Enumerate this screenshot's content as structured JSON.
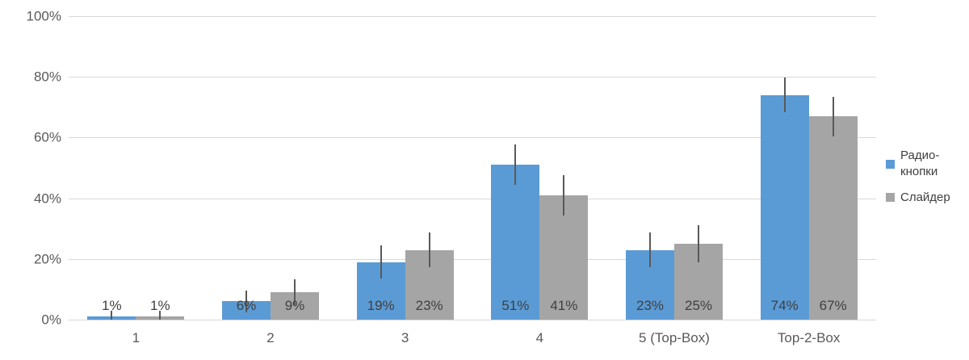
{
  "chart_data": {
    "type": "bar",
    "title": "",
    "xlabel": "",
    "ylabel": "",
    "categories": [
      "1",
      "2",
      "3",
      "4",
      "5 (Top-Box)",
      "Top-2-Box"
    ],
    "series": [
      {
        "name": "Радио-кнопки",
        "color": "#5b9bd5",
        "values": [
          1,
          6,
          19,
          51,
          23,
          74
        ],
        "error_bars_plus_minus": [
          2,
          3.5,
          5.5,
          6.7,
          5.6,
          5.7
        ]
      },
      {
        "name": "Слайдер",
        "color": "#a5a5a5",
        "values": [
          1,
          9,
          23,
          41,
          25,
          67
        ],
        "error_bars_plus_minus": [
          2,
          4.3,
          5.8,
          6.7,
          6,
          6.5
        ]
      }
    ],
    "value_labels": [
      [
        "1%",
        "6%",
        "19%",
        "51%",
        "23%",
        "74%"
      ],
      [
        "1%",
        "9%",
        "23%",
        "41%",
        "25%",
        "67%"
      ]
    ],
    "ylim": [
      0,
      100
    ],
    "y_tick_labels": [
      "0%",
      "20%",
      "40%",
      "60%",
      "80%",
      "100%"
    ],
    "grid": true,
    "legend_position": "right",
    "colors": {
      "gridline": "#d9d9d9",
      "axis_line": "#d6d6d6",
      "axis_text": "#595959",
      "value_label_text": "#3f3f3f",
      "error_bar": "#595959"
    }
  }
}
